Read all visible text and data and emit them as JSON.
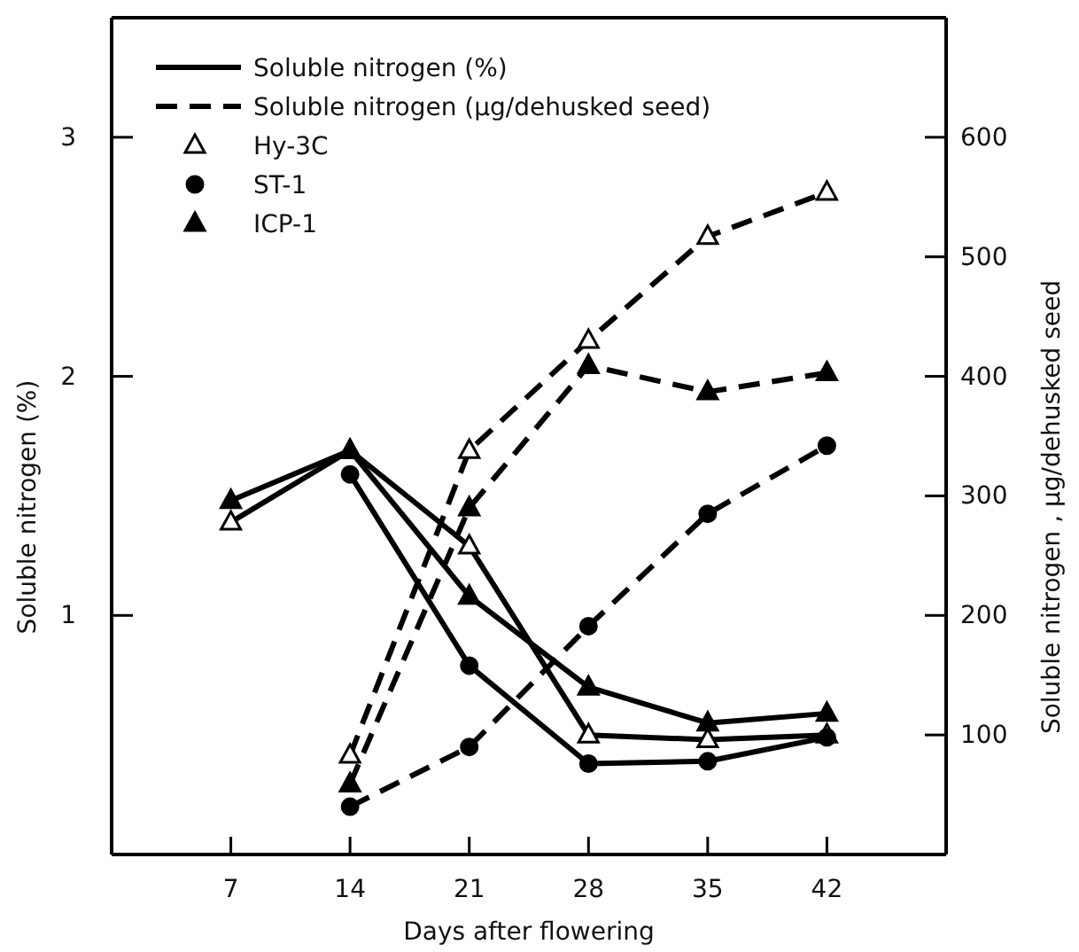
{
  "chart_data": {
    "type": "line",
    "xlabel": "Days after flowering",
    "ylabel": "Soluble nitrogen (%)",
    "y2label": "Soluble nitrogen ,  µg/dehusked seed",
    "x": [
      7,
      14,
      21,
      28,
      35,
      42
    ],
    "xlim": [
      0,
      49
    ],
    "xticks": [
      7,
      14,
      21,
      28,
      35,
      42
    ],
    "ylim": [
      0,
      3.5
    ],
    "yticks": [
      1,
      2,
      3
    ],
    "y2lim": [
      0,
      700
    ],
    "y2ticks": [
      100,
      200,
      300,
      400,
      500,
      600
    ],
    "grid": false,
    "legend": "top left",
    "annotations": [
      "Soluble nitrogen (%)",
      "Soluble nitrogen  (µg/dehusked seed)"
    ],
    "series": [
      {
        "name": "Hy-3C",
        "color": "#ffffff",
        "marker": "triangle",
        "line_style": "solid",
        "values": [
          1.39,
          1.69,
          1.29,
          0.5,
          0.48,
          0.5
        ]
      },
      {
        "name": "ST-1",
        "color": "#000000",
        "marker": "circle",
        "line_style": "solid",
        "values": [
          null,
          1.59,
          0.79,
          0.38,
          0.39,
          0.49
        ]
      },
      {
        "name": "ICP-1",
        "color": "#000000",
        "marker": "triangle",
        "line_style": "solid",
        "values": [
          1.48,
          1.69,
          1.08,
          0.7,
          0.55,
          0.59
        ]
      },
      {
        "color": "#ffffff",
        "marker": "triangle",
        "line_style": "dashed",
        "axis": "y2",
        "values": [
          null,
          83,
          338,
          430,
          517,
          554
        ]
      },
      {
        "color": "#000000",
        "marker": "circle",
        "line_style": "dashed",
        "axis": "y2",
        "values": [
          null,
          40,
          90,
          191,
          285,
          342
        ]
      },
      {
        "color": "#000000",
        "marker": "triangle",
        "line_style": "dashed",
        "axis": "y2",
        "values": [
          null,
          59,
          290,
          409,
          387,
          403
        ]
      }
    ]
  }
}
